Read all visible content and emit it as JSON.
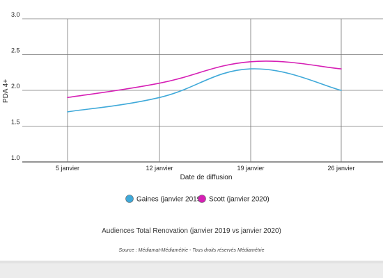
{
  "chart_data": {
    "type": "line",
    "categories": [
      "5 janvier",
      "12 janvier",
      "19 janvier",
      "26 janvier"
    ],
    "series": [
      {
        "name": "Gaines (janvier 2019)",
        "values": [
          1.7,
          1.9,
          2.3,
          2.0
        ],
        "color": "#3fa9d9"
      },
      {
        "name": "Scott (janvier 2020)",
        "values": [
          1.9,
          2.1,
          2.4,
          2.3
        ],
        "color": "#d61fb5"
      }
    ],
    "title": "Audiences Total Renovation (janvier 2019 vs janvier 2020)",
    "source": "Source : Médiamat-Médiamétrie - Tous droits réservés Médiamétrie",
    "xlabel": "Date de diffusion",
    "ylabel": "PDA 4+",
    "ylim": [
      1.0,
      3.0
    ],
    "yticks": [
      "1.0",
      "1.5",
      "2.0",
      "2.5",
      "3.0"
    ],
    "grid": true,
    "legend_position": "bottom"
  }
}
